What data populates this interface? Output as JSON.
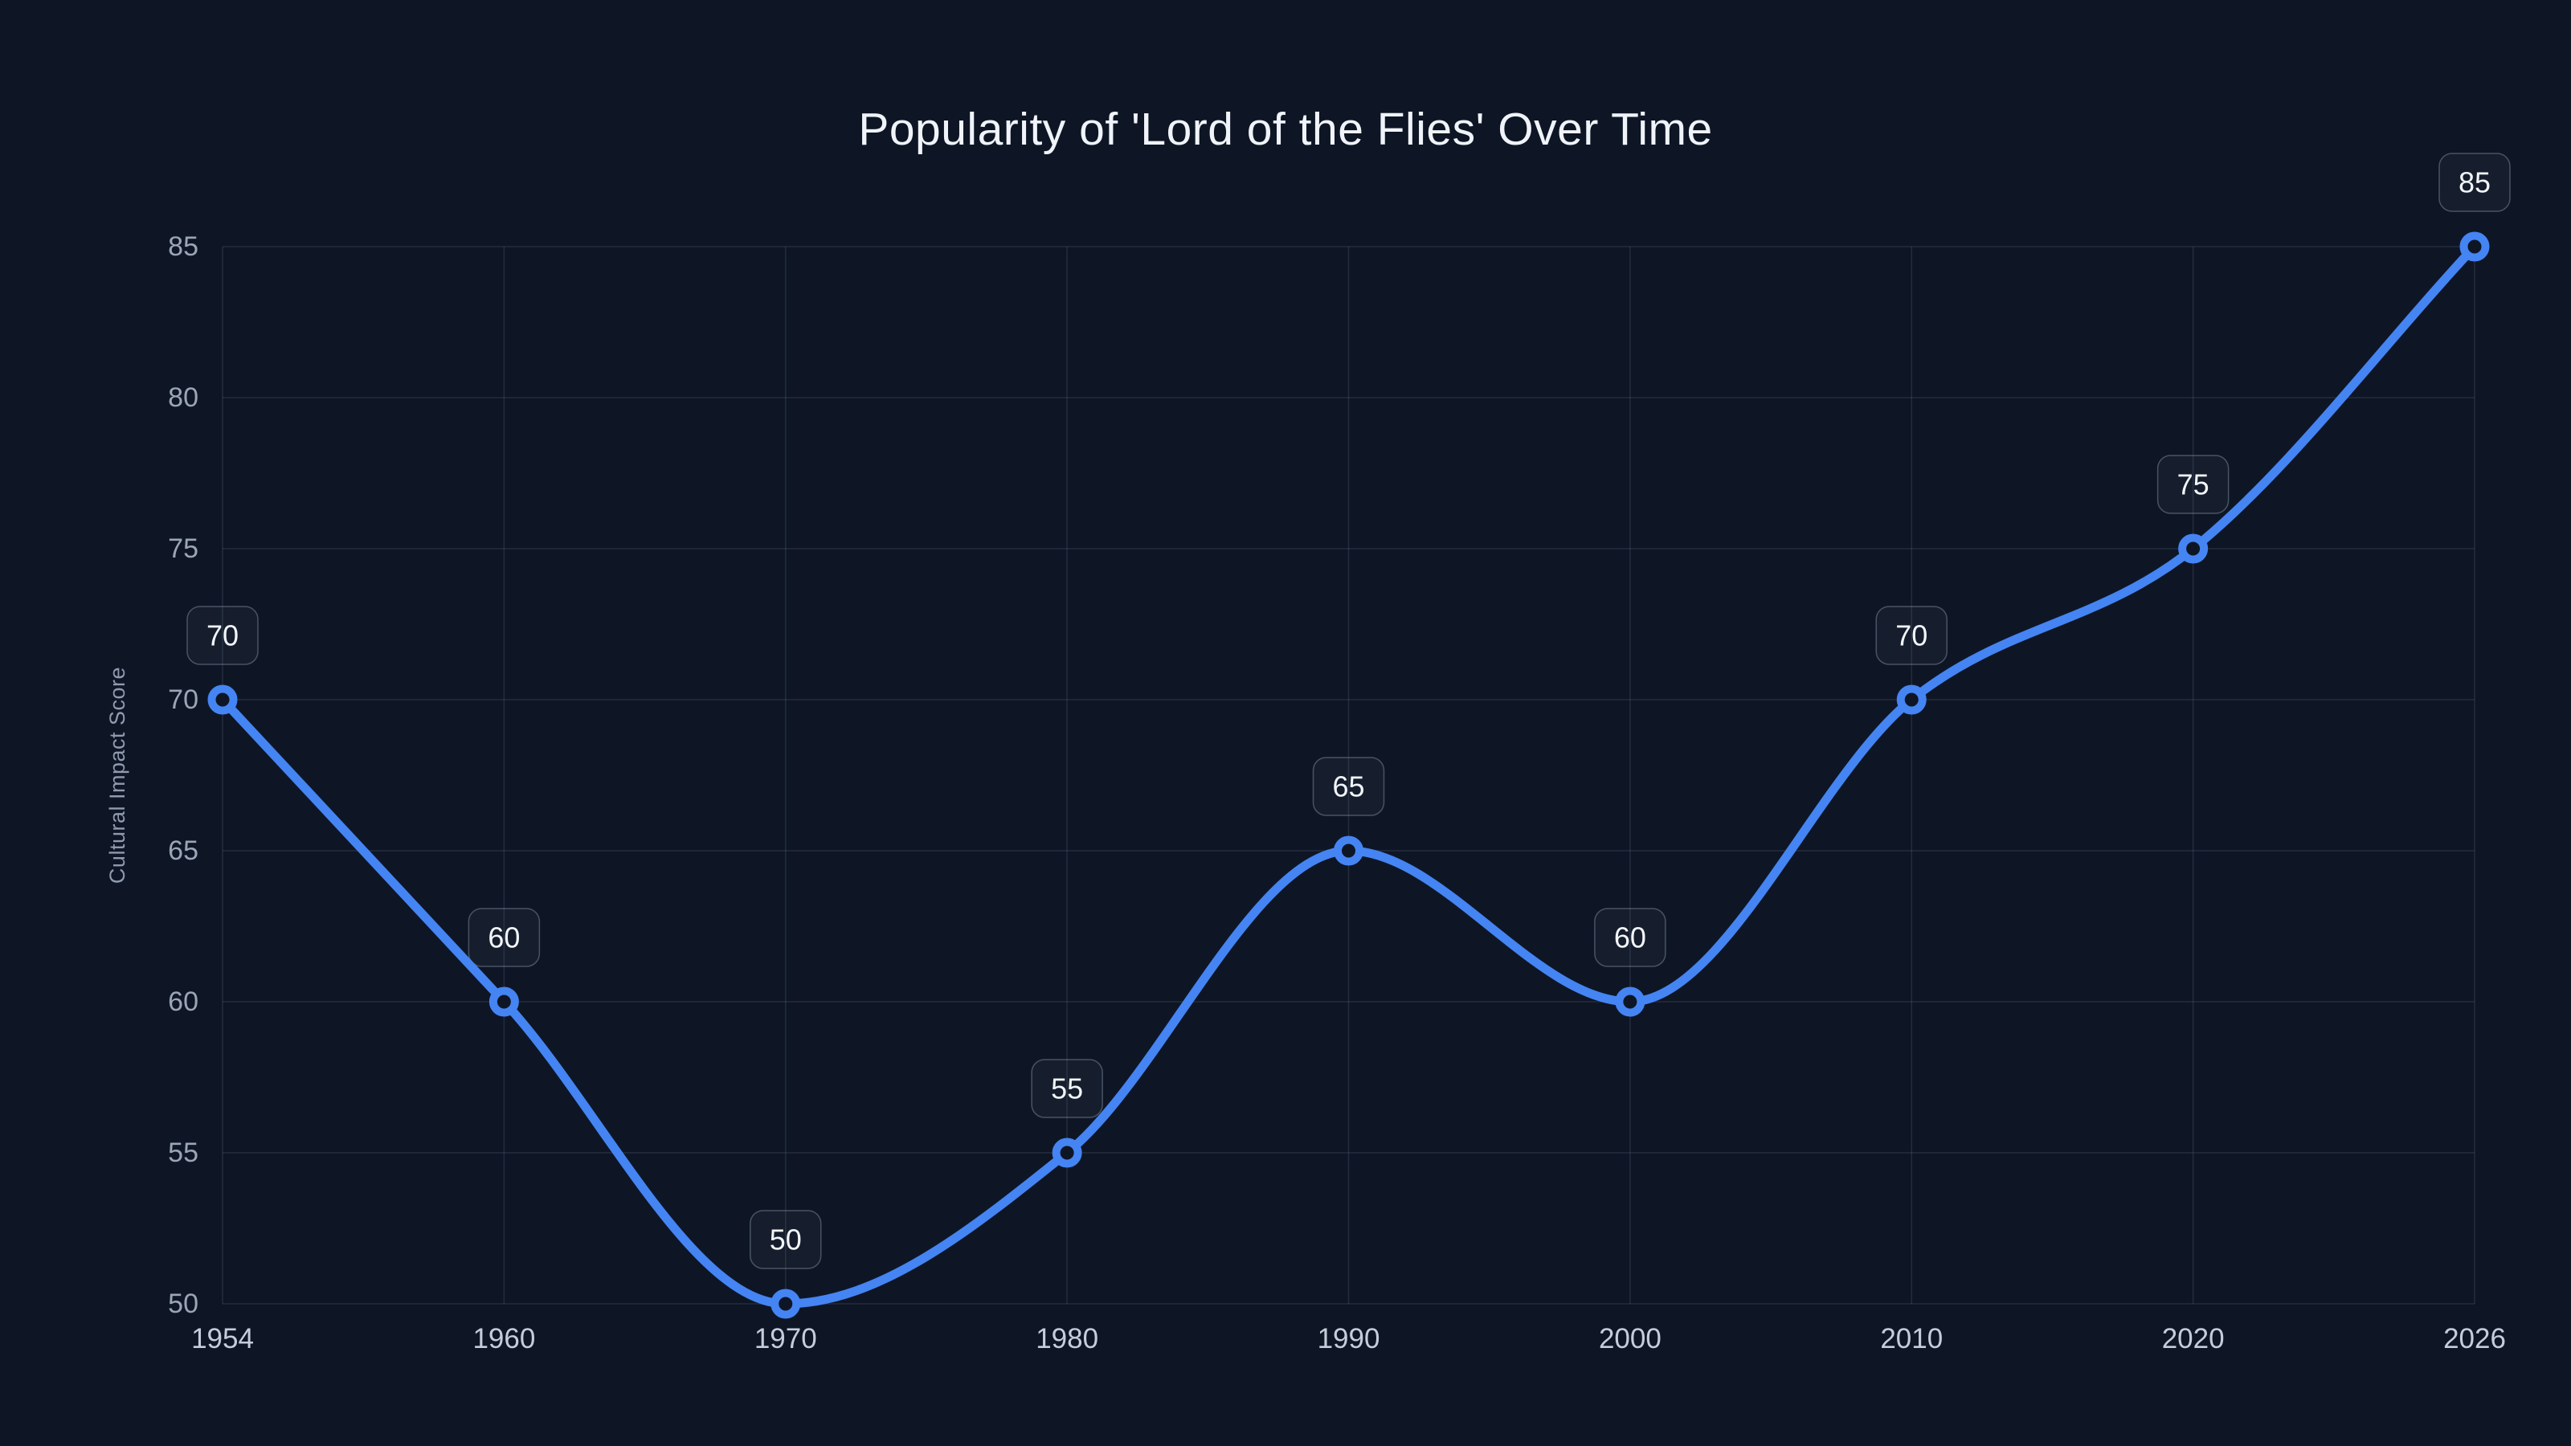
{
  "chart_data": {
    "type": "line",
    "title": "Popularity of 'Lord of the Flies' Over Time",
    "categories": [
      "1954",
      "1960",
      "1970",
      "1980",
      "1990",
      "2000",
      "2010",
      "2020",
      "2026"
    ],
    "series": [
      {
        "name": "Cultural Impact Score",
        "values": [
          70,
          60,
          50,
          55,
          65,
          60,
          70,
          75,
          85
        ]
      }
    ],
    "point_labels": [
      "70",
      "60",
      "50",
      "55",
      "65",
      "60",
      "70",
      "75",
      "85"
    ],
    "xlabel": "",
    "ylabel": "Cultural Impact Score",
    "ylim": [
      50,
      85
    ],
    "yticks": [
      50,
      55,
      60,
      65,
      70,
      75,
      80,
      85
    ],
    "x_spacing": "equal",
    "grid": "both",
    "legend": "none",
    "curve": "monotone",
    "markers": "hollow-circle"
  },
  "colors": {
    "background": "#0e1625",
    "line": "#4584f3",
    "marker_stroke": "#4584f3",
    "marker_fill": "#0e1625",
    "grid_line": "rgba(148,163,184,0.16)",
    "title_text": "#f0f4fa",
    "y_tick_text": "#9aa5b6",
    "x_tick_text": "#c6cdda",
    "axis_title_text": "#8f9aae",
    "label_box_fill": "rgba(148,163,184,0.06)",
    "label_box_border": "rgba(148,163,184,0.42)",
    "label_text": "#f2f5fa"
  }
}
